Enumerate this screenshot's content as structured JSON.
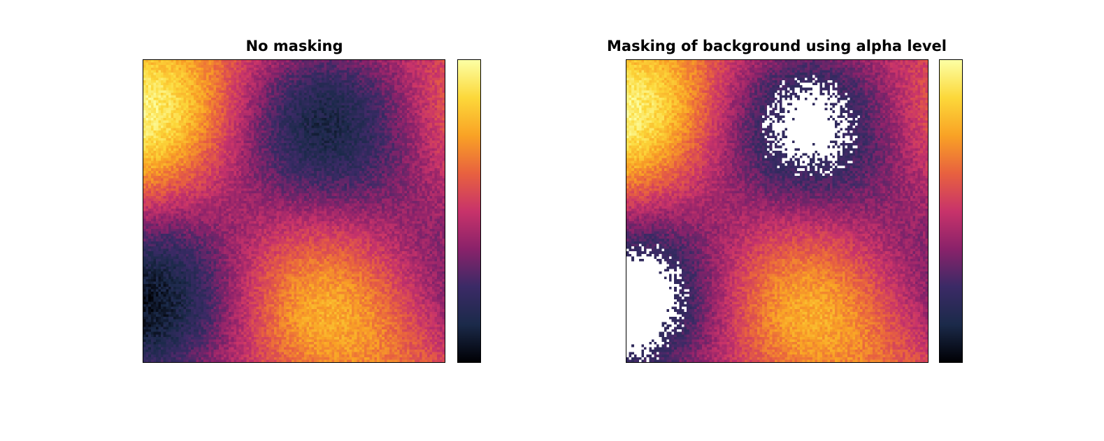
{
  "chart_data": [
    {
      "type": "heatmap",
      "title": "No masking",
      "colormap": "inferno",
      "grid_size": [
        120,
        120
      ],
      "field": "cos-interference pattern with noise, normalized 0-1",
      "masking": false,
      "colorbar": true
    },
    {
      "type": "heatmap",
      "title": "Masking of background using alpha level",
      "colormap": "inferno",
      "grid_size": [
        120,
        120
      ],
      "field": "same field as left panel",
      "masking": true,
      "mask_threshold": 0.2,
      "mask_color": "#ffffff",
      "colorbar": true
    }
  ],
  "colors": {
    "colormap_stops": [
      "#000004",
      "#1b2a4a",
      "#3b2a66",
      "#8a226a",
      "#c8336a",
      "#e8613f",
      "#f9a225",
      "#fcd83a",
      "#fcffa4"
    ]
  }
}
